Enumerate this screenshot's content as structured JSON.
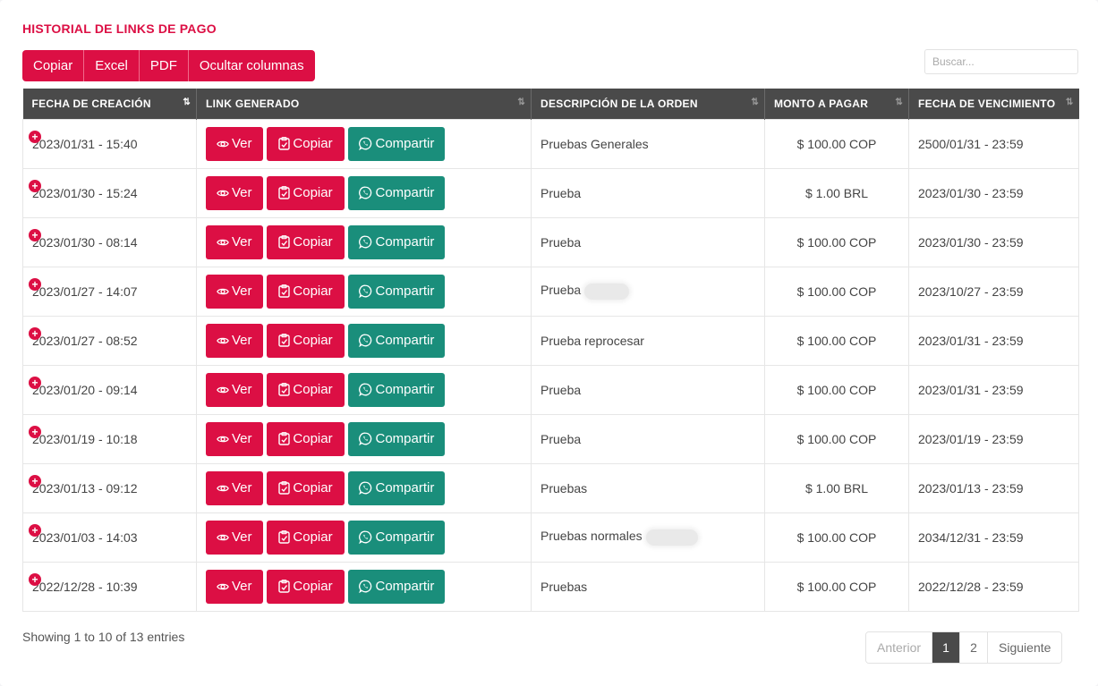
{
  "title": "HISTORIAL DE LINKS DE PAGO",
  "toolbar": {
    "copy": "Copiar",
    "excel": "Excel",
    "pdf": "PDF",
    "hide_columns": "Ocultar columnas"
  },
  "search": {
    "placeholder": "Buscar..."
  },
  "columns": [
    "FECHA DE CREACIÓN",
    "LINK GENERADO",
    "DESCRIPCIÓN DE LA ORDEN",
    "MONTO A PAGAR",
    "FECHA DE VENCIMIENTO"
  ],
  "row_buttons": {
    "view": "Ver",
    "copy": "Copiar",
    "share": "Compartir"
  },
  "rows": [
    {
      "created": "2023/01/31 - 15:40",
      "description": "Pruebas Generales",
      "amount": "$ 100.00 COP",
      "expires": "2500/01/31 - 23:59",
      "redacted": 0
    },
    {
      "created": "2023/01/30 - 15:24",
      "description": "Prueba",
      "amount": "$ 1.00 BRL",
      "expires": "2023/01/30 - 23:59",
      "redacted": 0
    },
    {
      "created": "2023/01/30 - 08:14",
      "description": "Prueba",
      "amount": "$ 100.00 COP",
      "expires": "2023/01/30 - 23:59",
      "redacted": 0
    },
    {
      "created": "2023/01/27 - 14:07",
      "description": "Prueba",
      "amount": "$ 100.00 COP",
      "expires": "2023/10/27 - 23:59",
      "redacted": 50
    },
    {
      "created": "2023/01/27 - 08:52",
      "description": "Prueba reprocesar",
      "amount": "$ 100.00 COP",
      "expires": "2023/01/31 - 23:59",
      "redacted": 0
    },
    {
      "created": "2023/01/20 - 09:14",
      "description": "Prueba",
      "amount": "$ 100.00 COP",
      "expires": "2023/01/31 - 23:59",
      "redacted": 0
    },
    {
      "created": "2023/01/19 - 10:18",
      "description": "Prueba",
      "amount": "$ 100.00 COP",
      "expires": "2023/01/19 - 23:59",
      "redacted": 0
    },
    {
      "created": "2023/01/13 - 09:12",
      "description": "Pruebas",
      "amount": "$ 1.00 BRL",
      "expires": "2023/01/13 - 23:59",
      "redacted": 0
    },
    {
      "created": "2023/01/03 - 14:03",
      "description": "Pruebas normales",
      "amount": "$ 100.00 COP",
      "expires": "2034/12/31 - 23:59",
      "redacted": 58
    },
    {
      "created": "2022/12/28 - 10:39",
      "description": "Pruebas",
      "amount": "$ 100.00 COP",
      "expires": "2022/12/28 - 23:59",
      "redacted": 0
    }
  ],
  "info": "Showing 1 to 10 of 13 entries",
  "pagination": {
    "prev": "Anterior",
    "pages": [
      "1",
      "2"
    ],
    "current": "1",
    "next": "Siguiente"
  },
  "colors": {
    "accent": "#dc0f44",
    "share": "#1a8e7b",
    "header": "#4a4a4a"
  }
}
